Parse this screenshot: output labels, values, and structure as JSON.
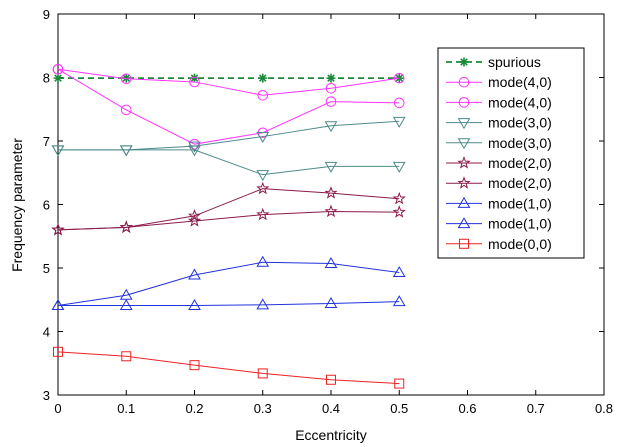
{
  "chart_data": {
    "type": "line",
    "xlabel": "Eccentricity",
    "ylabel": "Frequency parameter",
    "xlim": [
      0,
      0.8
    ],
    "ylim": [
      3,
      9
    ],
    "xticks": [
      "0",
      "0.1",
      "0.2",
      "0.3",
      "0.4",
      "0.5",
      "0.6",
      "0.7",
      "0.8"
    ],
    "yticks": [
      "3",
      "4",
      "5",
      "6",
      "7",
      "8",
      "9"
    ],
    "grid": false,
    "legend_position": "top-right",
    "x": [
      0,
      0.1,
      0.2,
      0.3,
      0.4,
      0.5
    ],
    "series": [
      {
        "name": "spurious",
        "color": "#1b8a3a",
        "marker": "asterisk",
        "dash": "dashed",
        "values": [
          7.99,
          7.99,
          7.99,
          7.99,
          7.99,
          7.99
        ]
      },
      {
        "name": "mode(4,0)",
        "color": "#ff33ff",
        "marker": "circle",
        "dash": "solid",
        "values": [
          8.13,
          7.98,
          7.93,
          7.72,
          7.83,
          7.99
        ]
      },
      {
        "name": "mode(4,0)",
        "color": "#ff33ff",
        "marker": "circle",
        "dash": "solid",
        "values": [
          8.13,
          7.49,
          6.95,
          7.13,
          7.62,
          7.6
        ]
      },
      {
        "name": "mode(3,0)",
        "color": "#4d8a8a",
        "marker": "triangle-down",
        "dash": "solid",
        "values": [
          6.86,
          6.86,
          6.92,
          7.07,
          7.24,
          7.31
        ]
      },
      {
        "name": "mode(3,0)",
        "color": "#4d8a8a",
        "marker": "triangle-down",
        "dash": "solid",
        "values": [
          6.86,
          6.86,
          6.86,
          6.47,
          6.6,
          6.6
        ]
      },
      {
        "name": "mode(2,0)",
        "color": "#8b1a4a",
        "marker": "star",
        "dash": "solid",
        "values": [
          5.6,
          5.64,
          5.82,
          6.25,
          6.18,
          6.09
        ]
      },
      {
        "name": "mode(2,0)",
        "color": "#8b1a4a",
        "marker": "star",
        "dash": "solid",
        "values": [
          5.6,
          5.64,
          5.74,
          5.84,
          5.89,
          5.88
        ]
      },
      {
        "name": "mode(1,0)",
        "color": "#2233dd",
        "marker": "triangle-up",
        "dash": "solid",
        "values": [
          4.41,
          4.57,
          4.89,
          5.09,
          5.07,
          4.93
        ]
      },
      {
        "name": "mode(1,0)",
        "color": "#2233dd",
        "marker": "triangle-up",
        "dash": "solid",
        "values": [
          4.41,
          4.41,
          4.41,
          4.42,
          4.44,
          4.47
        ]
      },
      {
        "name": "mode(0,0)",
        "color": "#ee2222",
        "marker": "square",
        "dash": "solid",
        "values": [
          3.68,
          3.61,
          3.47,
          3.34,
          3.24,
          3.18
        ]
      }
    ]
  }
}
